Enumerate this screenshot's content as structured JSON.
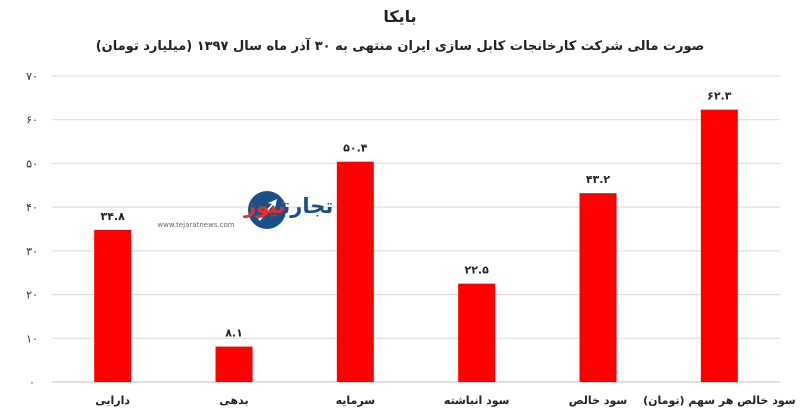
{
  "chart_data": {
    "type": "bar",
    "title": "بایکا",
    "subtitle": "صورت مالی شرکت کارخانجات کابل سازی ایران منتهی به ۳۰ آذر ماه سال ۱۳۹۷ (میلیارد تومان)",
    "xlabel": "",
    "ylabel": "",
    "ylim": [
      0,
      70
    ],
    "yticks": [
      0,
      10,
      20,
      30,
      40,
      50,
      60,
      70
    ],
    "ytick_labels": [
      "۰",
      "۱۰",
      "۲۰",
      "۳۰",
      "۴۰",
      "۵۰",
      "۶۰",
      "۷۰"
    ],
    "categories": [
      "دارایی",
      "بدهی",
      "سرمایه",
      "سود انباشته",
      "سود خالص",
      "سود خالص هر سهم (تومان)"
    ],
    "values": [
      34.8,
      8.1,
      50.4,
      22.5,
      43.2,
      62.3
    ],
    "data_labels": [
      "۳۴.۸",
      "۸.۱",
      "۵۰.۴",
      "۲۲.۵",
      "۴۳.۲",
      "۶۲.۳"
    ],
    "bar_color": "#ff0000",
    "grid": true,
    "legend": "none"
  },
  "watermark": {
    "brand": "تجارت نیوز",
    "brand_part1": "تجارت",
    "brand_part2": "نیوز",
    "url": "www.tejaratnews.com",
    "colors": {
      "primary": "#1a4f8a",
      "secondary": "#e63027"
    },
    "icon": "tejaratnews-logo-icon"
  }
}
